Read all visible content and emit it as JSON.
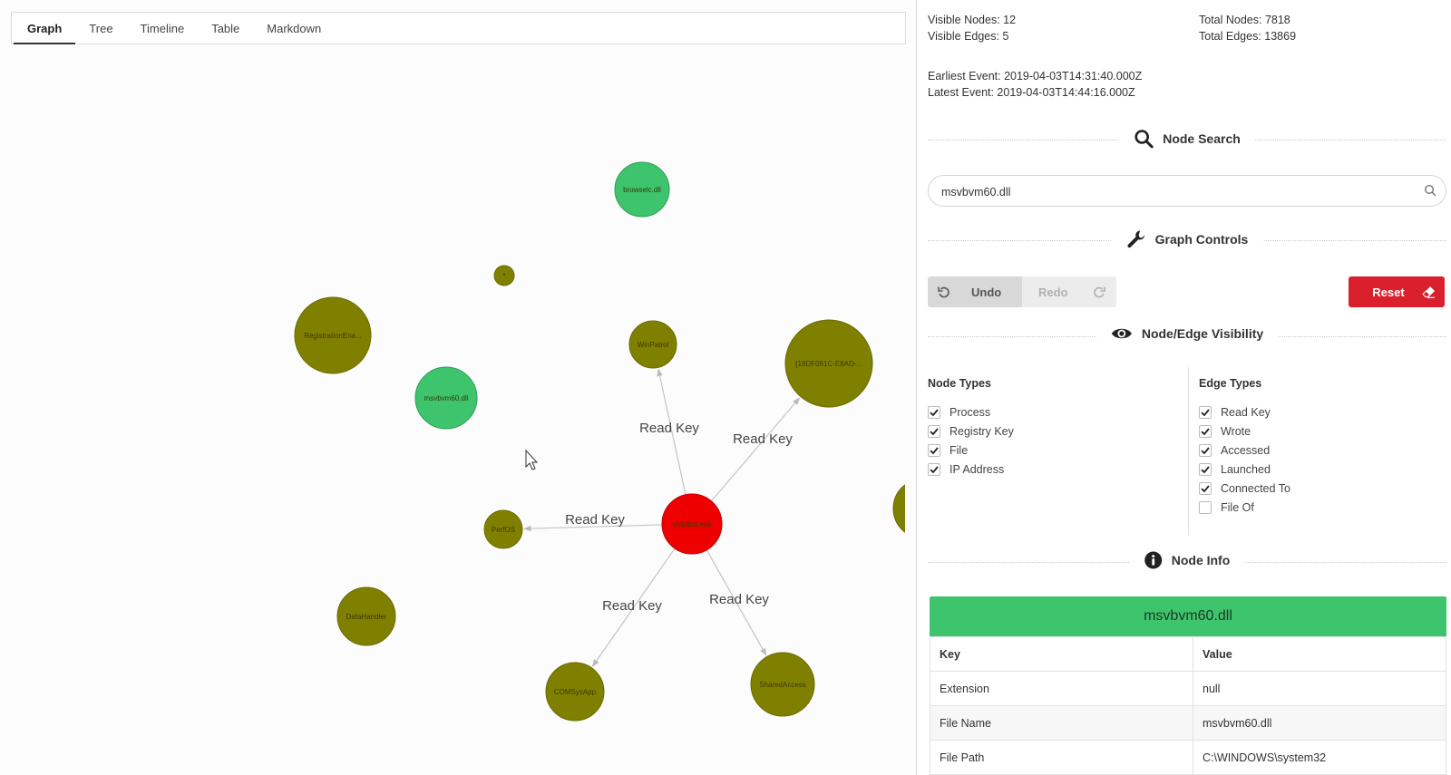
{
  "tabs": [
    "Graph",
    "Tree",
    "Timeline",
    "Table",
    "Markdown"
  ],
  "active_tab": "Graph",
  "stats": {
    "visible_nodes": "Visible Nodes: 12",
    "visible_edges": "Visible Edges: 5",
    "total_nodes": "Total Nodes: 7818",
    "total_edges": "Total Edges: 13869",
    "earliest_event": "Earliest Event: 2019-04-03T14:31:40.000Z",
    "latest_event": "Latest Event: 2019-04-03T14:44:16.000Z"
  },
  "node_search": {
    "title": "Node Search",
    "value": "msvbvm60.dll",
    "icon": "search-icon"
  },
  "graph_controls": {
    "title": "Graph Controls",
    "icon": "wrench-icon",
    "undo": "Undo",
    "redo": "Redo",
    "reset": "Reset"
  },
  "visibility": {
    "title": "Node/Edge Visibility",
    "icon": "eye-icon",
    "node_types_title": "Node Types",
    "edge_types_title": "Edge Types",
    "node_types": [
      {
        "label": "Process",
        "checked": true
      },
      {
        "label": "Registry Key",
        "checked": true
      },
      {
        "label": "File",
        "checked": true
      },
      {
        "label": "IP Address",
        "checked": true
      }
    ],
    "edge_types": [
      {
        "label": "Read Key",
        "checked": true
      },
      {
        "label": "Wrote",
        "checked": true
      },
      {
        "label": "Accessed",
        "checked": true
      },
      {
        "label": "Launched",
        "checked": true
      },
      {
        "label": "Connected To",
        "checked": true
      },
      {
        "label": "File Of",
        "checked": false
      }
    ]
  },
  "node_info": {
    "title": "Node Info",
    "icon": "info-icon",
    "selected_node": "msvbvm60.dll",
    "header_color": "#3ec46d",
    "columns": [
      "Key",
      "Value"
    ],
    "rows": [
      [
        "Extension",
        "null"
      ],
      [
        "File Name",
        "msvbvm60.dll"
      ],
      [
        "File Path",
        "C:\\WINDOWS\\system32"
      ]
    ]
  },
  "graph": {
    "colors": {
      "process": "#ee0000",
      "registry": "#808000",
      "file": "#3ec46d"
    },
    "nodes": [
      {
        "id": "proc",
        "label": "shipitnd.exe",
        "type": "process"
      },
      {
        "id": "browselc",
        "label": "browselc.dll",
        "type": "file"
      },
      {
        "id": "msvbvm",
        "label": "msvbvm60.dll",
        "type": "file"
      },
      {
        "id": "star",
        "label": "*",
        "type": "registry"
      },
      {
        "id": "regena",
        "label": "RegistrationEna...",
        "type": "registry"
      },
      {
        "id": "winpatrol",
        "label": "WinPatrol",
        "type": "registry"
      },
      {
        "id": "clsid",
        "label": "{18DF081C-E8AD-...",
        "type": "registry"
      },
      {
        "id": "perfos",
        "label": "PerfOS",
        "type": "registry"
      },
      {
        "id": "datahandler",
        "label": "DataHandler",
        "type": "registry"
      },
      {
        "id": "comsysapp",
        "label": "COMSysApp",
        "type": "registry"
      },
      {
        "id": "sharedaccess",
        "label": "SharedAccess",
        "type": "registry"
      },
      {
        "id": "offscreen",
        "label": "",
        "type": "registry"
      }
    ],
    "edges": [
      {
        "from": "proc",
        "to": "winpatrol",
        "label": "Read Key"
      },
      {
        "from": "proc",
        "to": "clsid",
        "label": "Read Key"
      },
      {
        "from": "proc",
        "to": "perfos",
        "label": "Read Key"
      },
      {
        "from": "proc",
        "to": "comsysapp",
        "label": "Read Key"
      },
      {
        "from": "proc",
        "to": "sharedaccess",
        "label": "Read Key"
      }
    ]
  }
}
